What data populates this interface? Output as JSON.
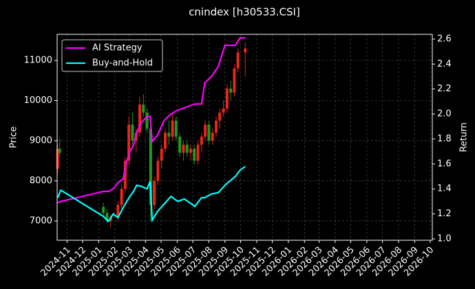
{
  "chart_data": {
    "type": "candlestick",
    "title": "cnindex [h30533.CSI]",
    "ylabel": "Price",
    "y2label": "Return",
    "x": [
      "2024-10-14",
      "2024-10-18",
      "2025-01-10",
      "2025-01-17",
      "2025-01-24",
      "2025-02-07",
      "2025-02-14",
      "2025-02-21",
      "2025-02-28",
      "2025-03-07",
      "2025-03-14",
      "2025-03-21",
      "2025-03-28",
      "2025-04-04",
      "2025-04-11",
      "2025-04-18",
      "2025-04-25",
      "2025-05-02",
      "2025-05-09",
      "2025-05-16",
      "2025-05-23",
      "2025-05-30",
      "2025-06-06",
      "2025-06-13",
      "2025-06-20",
      "2025-06-27",
      "2025-07-04",
      "2025-07-11",
      "2025-07-18",
      "2025-07-25",
      "2025-08-01",
      "2025-08-08",
      "2025-08-15",
      "2025-08-22",
      "2025-08-29",
      "2025-09-05",
      "2025-09-12",
      "2025-09-19",
      "2025-09-26",
      "2025-10-10"
    ],
    "open": [
      8300,
      8800,
      7350,
      7200,
      7000,
      7100,
      7400,
      7800,
      8500,
      9400,
      9000,
      9200,
      9900,
      9700,
      9300,
      7400,
      8000,
      8500,
      8800,
      9200,
      9100,
      9500,
      9100,
      8700,
      8900,
      8700,
      8800,
      8500,
      8900,
      9100,
      9400,
      9000,
      9200,
      9500,
      9700,
      9800,
      10300,
      10200,
      10800,
      11200
    ],
    "high": [
      8900,
      9050,
      7450,
      7300,
      7150,
      7500,
      7900,
      8600,
      9600,
      9700,
      9300,
      10100,
      10150,
      9800,
      9400,
      8100,
      8600,
      8900,
      9300,
      9500,
      9700,
      9600,
      9200,
      9000,
      9000,
      8900,
      8900,
      9000,
      9200,
      9500,
      9500,
      9300,
      9600,
      9800,
      10000,
      10400,
      10500,
      10900,
      11300,
      11450
    ],
    "low": [
      8200,
      8600,
      7150,
      6950,
      6850,
      7000,
      7300,
      7700,
      8400,
      8900,
      8700,
      9100,
      9600,
      9200,
      7000,
      7300,
      7900,
      8300,
      8700,
      8900,
      9000,
      9000,
      8600,
      8500,
      8600,
      8500,
      8400,
      8400,
      8700,
      9000,
      8900,
      8900,
      9100,
      9300,
      9600,
      9700,
      10000,
      10100,
      10700,
      10600
    ],
    "close": [
      8800,
      8700,
      7200,
      7000,
      7100,
      7400,
      7800,
      8500,
      9400,
      9000,
      9200,
      9900,
      9700,
      9300,
      7400,
      8000,
      8500,
      8800,
      9200,
      9100,
      9500,
      9100,
      8700,
      8900,
      8700,
      8800,
      8500,
      8900,
      9100,
      9400,
      9000,
      9200,
      9500,
      9700,
      9800,
      10300,
      10200,
      10800,
      11200,
      11300
    ],
    "up_color": "#e8261c",
    "down_color": "#1f9a1f",
    "series": [
      {
        "name": "AI Strategy",
        "color": "#ff00ff",
        "axis": "y2",
        "x": [
          "2024-10-14",
          "2024-10-20",
          "2025-01-10",
          "2025-01-20",
          "2025-01-29",
          "2025-02-07",
          "2025-02-17",
          "2025-02-24",
          "2025-03-02",
          "2025-03-09",
          "2025-03-15",
          "2025-03-24",
          "2025-04-04",
          "2025-04-10",
          "2025-04-14",
          "2025-04-24",
          "2025-05-07",
          "2025-05-20",
          "2025-06-02",
          "2025-06-15",
          "2025-07-05",
          "2025-07-18",
          "2025-07-24",
          "2025-08-06",
          "2025-08-19",
          "2025-09-01",
          "2025-09-21",
          "2025-09-30",
          "2025-10-10"
        ],
        "values": [
          1.29,
          1.3,
          1.38,
          1.38,
          1.4,
          1.45,
          1.48,
          1.62,
          1.7,
          1.75,
          1.85,
          1.93,
          1.98,
          1.98,
          1.78,
          1.83,
          1.95,
          2.0,
          2.03,
          2.05,
          2.08,
          2.08,
          2.25,
          2.3,
          2.38,
          2.55,
          2.55,
          2.61,
          2.61
        ]
      },
      {
        "name": "Buy-and-Hold",
        "color": "#00ffff",
        "axis": "y2",
        "x": [
          "2024-10-14",
          "2024-10-20",
          "2025-01-10",
          "2025-01-20",
          "2025-01-29",
          "2025-02-07",
          "2025-02-17",
          "2025-02-24",
          "2025-03-02",
          "2025-03-09",
          "2025-03-15",
          "2025-03-24",
          "2025-04-04",
          "2025-04-10",
          "2025-04-14",
          "2025-04-24",
          "2025-05-07",
          "2025-05-20",
          "2025-06-02",
          "2025-06-15",
          "2025-07-05",
          "2025-07-18",
          "2025-07-24",
          "2025-08-06",
          "2025-08-19",
          "2025-09-01",
          "2025-09-21",
          "2025-09-30",
          "2025-10-10"
        ],
        "values": [
          1.33,
          1.39,
          1.18,
          1.14,
          1.2,
          1.17,
          1.25,
          1.3,
          1.34,
          1.38,
          1.43,
          1.42,
          1.4,
          1.46,
          1.15,
          1.22,
          1.28,
          1.34,
          1.3,
          1.32,
          1.26,
          1.33,
          1.33,
          1.36,
          1.37,
          1.43,
          1.5,
          1.55,
          1.58
        ]
      }
    ],
    "xlim": [
      "2024-10-13",
      "2026-10-05"
    ],
    "xticks": [
      "2024-11",
      "2024-12",
      "2025-01",
      "2025-02",
      "2025-03",
      "2025-04",
      "2025-05",
      "2025-06",
      "2025-07",
      "2025-08",
      "2025-09",
      "2025-10",
      "2025-11",
      "2025-12",
      "2026-01",
      "2026-02",
      "2026-03",
      "2026-04",
      "2026-05",
      "2026-06",
      "2026-07",
      "2026-08",
      "2026-09",
      "2026-10"
    ],
    "ylim": [
      6520,
      11650
    ],
    "yticks": [
      7000,
      8000,
      9000,
      10000,
      11000
    ],
    "y2lim": [
      0.989,
      2.638
    ],
    "y2ticks": [
      {
        "value": 1,
        "label": "1.0"
      },
      1.2,
      1.4,
      1.6,
      1.8,
      {
        "value": 2,
        "label": "2.0"
      },
      2.2,
      2.4,
      2.6
    ],
    "grid": true,
    "legend": "upper left"
  }
}
